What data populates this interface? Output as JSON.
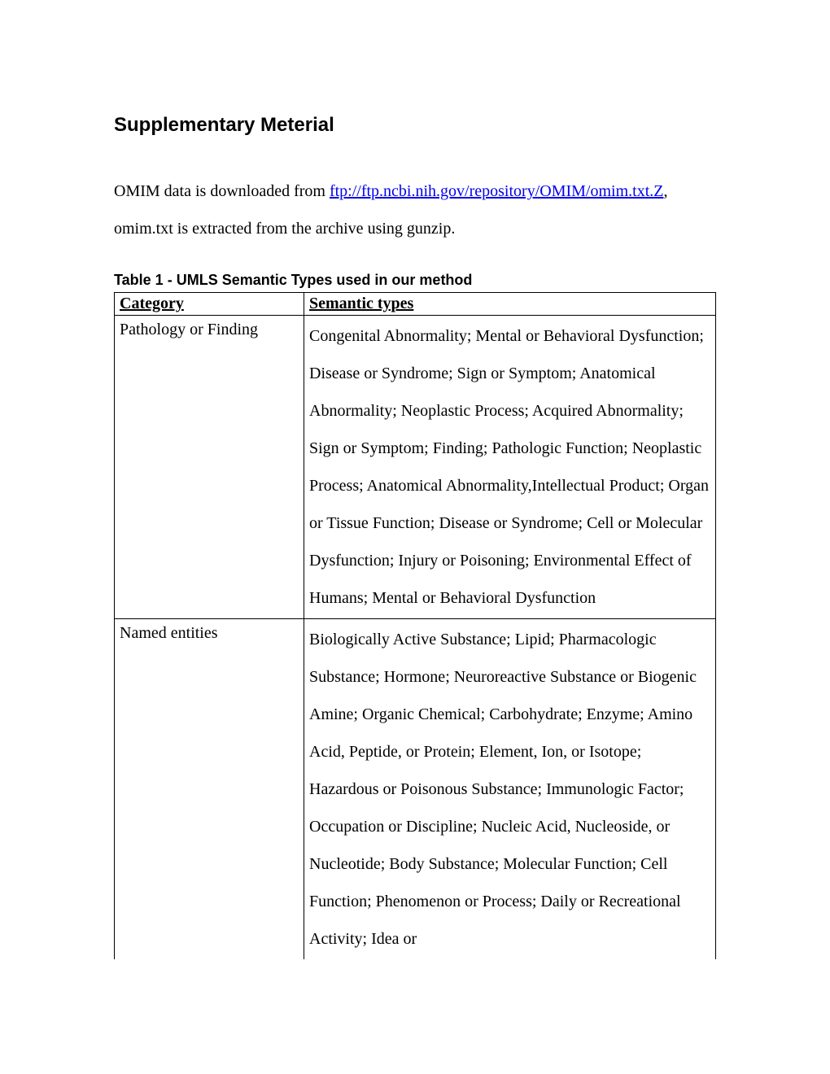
{
  "title": "Supplementary Meterial",
  "intro": {
    "prefix": "OMIM data is downloaded from ",
    "link_text": "ftp://ftp.ncbi.nih.gov/repository/OMIM/omim.txt.Z",
    "suffix": ", omim.txt is extracted from the archive using gunzip."
  },
  "table": {
    "caption_label": "Table 1",
    "caption_sep": "  - ",
    "caption_text": "UMLS Semantic Types used in our method",
    "columns": [
      "Category",
      "Semantic types"
    ],
    "rows": [
      {
        "category": "Pathology or Finding",
        "types": "Congenital Abnormality; Mental or Behavioral Dysfunction; Disease or Syndrome; Sign or Symptom; Anatomical Abnormality; Neoplastic Process; Acquired Abnormality; Sign or Symptom; Finding; Pathologic Function; Neoplastic Process; Anatomical Abnormality,Intellectual Product; Organ or Tissue Function; Disease or Syndrome; Cell or Molecular Dysfunction; Injury or Poisoning; Environmental Effect of Humans; Mental or Behavioral Dysfunction"
      },
      {
        "category": "Named entities",
        "types": "Biologically Active Substance; Lipid; Pharmacologic Substance; Hormone; Neuroreactive Substance or Biogenic Amine; Organic Chemical; Carbohydrate; Enzyme; Amino Acid, Peptide, or Protein; Element, Ion, or Isotope; Hazardous or Poisonous Substance; Immunologic Factor; Occupation or Discipline; Nucleic Acid, Nucleoside, or Nucleotide; Body Substance; Molecular Function; Cell Function; Phenomenon or Process; Daily or Recreational Activity; Idea or"
      }
    ]
  }
}
